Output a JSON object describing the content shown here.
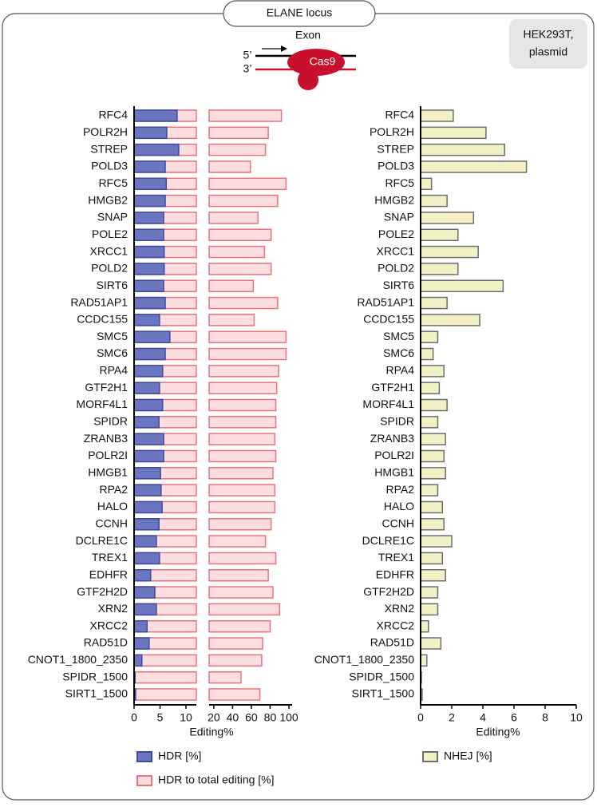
{
  "title": "ELANE locus",
  "cell_line": [
    "HEK293T,",
    "plasmid"
  ],
  "diagram": {
    "exon": "Exon",
    "five": "5’",
    "three": "3’",
    "cas9": "Cas9"
  },
  "chart_data": [
    {
      "type": "bar",
      "orientation": "horizontal",
      "xlabel": "Editing%",
      "categories": [
        "RFC4",
        "POLR2H",
        "STREP",
        "POLD3",
        "RFC5",
        "HMGB2",
        "SNAP",
        "POLE2",
        "XRCC1",
        "POLD2",
        "SIRT6",
        "RAD51AP1",
        "CCDC155",
        "SMC5",
        "SMC6",
        "RPA4",
        "GTF2H1",
        "MORF4L1",
        "SPIDR",
        "ZRANB3",
        "POLR2I",
        "HMGB1",
        "RPA2",
        "HALO",
        "CCNH",
        "DCLRE1C",
        "TREX1",
        "EDHFR",
        "GTF2H2D",
        "XRN2",
        "XRCC2",
        "RAD51D",
        "CNOT1_1800_2350",
        "SPIDR_1500",
        "SIRT1_1500"
      ],
      "xlim": [
        0,
        12
      ],
      "xticks": [
        0,
        5,
        10
      ],
      "x2lim": [
        15,
        100
      ],
      "x2ticks": [
        20,
        40,
        60,
        80,
        100
      ],
      "series": [
        {
          "name": "HDR to total editing [%]",
          "color": "#fcdde0",
          "edge": "#e9737c",
          "axis": "x2",
          "values": [
            92,
            78,
            75,
            59,
            97,
            88,
            67,
            81,
            74,
            81,
            62,
            88,
            63,
            97,
            97,
            89,
            87,
            86,
            86,
            85,
            86,
            83,
            85,
            85,
            81,
            75,
            86,
            78,
            83,
            90,
            80,
            72,
            71,
            49,
            69
          ]
        },
        {
          "name": "HDR [%]",
          "color": "#6b75c0",
          "edge": "#3c4ba0",
          "values": [
            8.3,
            6.3,
            8.6,
            6.0,
            6.2,
            6.0,
            5.7,
            5.7,
            5.8,
            5.8,
            5.7,
            6.0,
            4.9,
            6.9,
            6.0,
            5.5,
            4.9,
            5.5,
            4.8,
            5.7,
            5.7,
            5.1,
            5.2,
            5.4,
            4.8,
            4.3,
            4.9,
            3.2,
            4.0,
            4.3,
            2.5,
            2.9,
            1.5,
            0.2,
            0.3
          ]
        }
      ]
    },
    {
      "type": "bar",
      "orientation": "horizontal",
      "xlabel": "Editing%",
      "categories": [
        "RFC4",
        "POLR2H",
        "STREP",
        "POLD3",
        "RFC5",
        "HMGB2",
        "SNAP",
        "POLE2",
        "XRCC1",
        "POLD2",
        "SIRT6",
        "RAD51AP1",
        "CCDC155",
        "SMC5",
        "SMC6",
        "RPA4",
        "GTF2H1",
        "MORF4L1",
        "SPIDR",
        "ZRANB3",
        "POLR2I",
        "HMGB1",
        "RPA2",
        "HALO",
        "CCNH",
        "DCLRE1C",
        "TREX1",
        "EDHFR",
        "GTF2H2D",
        "XRN2",
        "XRCC2",
        "RAD51D",
        "CNOT1_1800_2350",
        "SPIDR_1500",
        "SIRT1_1500"
      ],
      "xlim": [
        0,
        10
      ],
      "xticks": [
        0,
        2,
        4,
        6,
        8,
        10
      ],
      "series": [
        {
          "name": "NHEJ [%]",
          "color": "#f2f1c6",
          "edge": "#6e6e6e",
          "values": [
            2.1,
            4.2,
            5.4,
            6.8,
            0.7,
            1.7,
            3.4,
            2.4,
            3.7,
            2.4,
            5.3,
            1.7,
            3.8,
            1.1,
            0.8,
            1.5,
            1.2,
            1.7,
            1.1,
            1.6,
            1.5,
            1.6,
            1.1,
            1.4,
            1.5,
            2.0,
            1.4,
            1.6,
            1.1,
            1.1,
            0.5,
            1.3,
            0.4,
            0.05,
            0.1
          ]
        }
      ]
    }
  ]
}
